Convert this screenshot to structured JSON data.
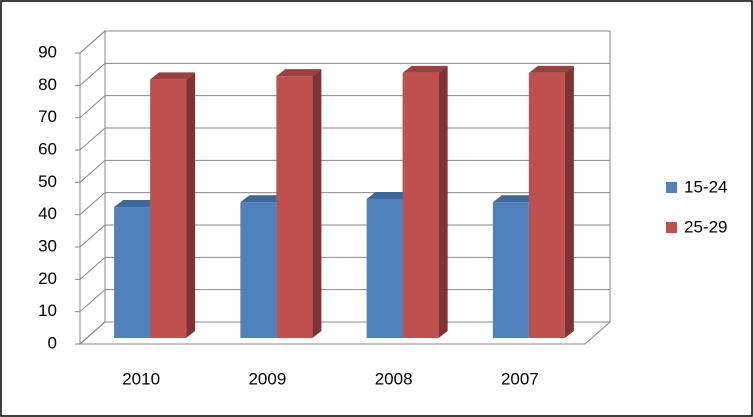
{
  "chart_data": {
    "type": "bar3d",
    "categories": [
      "2010",
      "2009",
      "2008",
      "2007"
    ],
    "series": [
      {
        "name": "15-24",
        "color": "#4f81bd",
        "values": [
          40.5,
          42,
          43,
          42
        ]
      },
      {
        "name": "25-29",
        "color": "#c0504d",
        "values": [
          80,
          81,
          82,
          82
        ]
      }
    ],
    "ylim": [
      0,
      90
    ],
    "yticks": [
      0,
      10,
      20,
      30,
      40,
      50,
      60,
      70,
      80,
      90
    ],
    "grid": true,
    "legend": "right"
  }
}
